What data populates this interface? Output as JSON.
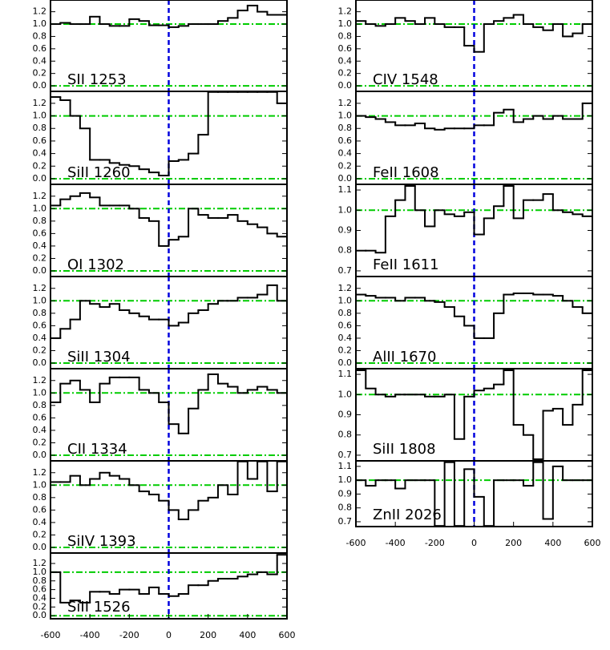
{
  "chart_data": [
    {
      "type": "step",
      "title": "SII 1253",
      "xlim": [
        -600,
        600
      ],
      "ylim": [
        -0.09,
        1.39
      ],
      "yticks": [
        {
          "value": 0,
          "label": "0.0"
        },
        0.2,
        0.4,
        0.6,
        0.8,
        {
          "value": 1,
          "label": "1.0"
        },
        1.2
      ],
      "hlines": [
        0,
        1
      ],
      "vlines": [
        0
      ],
      "color": "#000000",
      "hline_color": "#00cc00",
      "vline_color": "#0000dd",
      "x": [
        -575,
        -525,
        -475,
        -425,
        -375,
        -325,
        -275,
        -225,
        -175,
        -125,
        -75,
        -25,
        25,
        75,
        125,
        175,
        225,
        275,
        325,
        375,
        425,
        475,
        525,
        575
      ],
      "values": [
        1.0,
        1.02,
        1.0,
        1.0,
        1.12,
        1.0,
        0.97,
        0.97,
        1.08,
        1.05,
        0.98,
        0.98,
        0.95,
        0.97,
        1.0,
        1.0,
        1.0,
        1.05,
        1.1,
        1.22,
        1.3,
        1.2,
        1.15,
        1.15
      ]
    },
    {
      "type": "step",
      "title": "SiII 1260",
      "xlim": [
        -600,
        600
      ],
      "ylim": [
        -0.09,
        1.39
      ],
      "yticks": [
        {
          "value": 0,
          "label": "0.0"
        },
        0.2,
        0.4,
        0.6,
        0.8,
        {
          "value": 1,
          "label": "1.0"
        },
        1.2
      ],
      "hlines": [
        0,
        1
      ],
      "vlines": [
        0
      ],
      "color": "#000000",
      "hline_color": "#00cc00",
      "vline_color": "#0000dd",
      "x": [
        -575,
        -525,
        -475,
        -425,
        -375,
        -325,
        -275,
        -225,
        -175,
        -125,
        -75,
        -25,
        25,
        75,
        125,
        175,
        225,
        275,
        325,
        375,
        425,
        475,
        525,
        575
      ],
      "values": [
        1.3,
        1.25,
        1.0,
        0.8,
        0.3,
        0.3,
        0.25,
        0.22,
        0.2,
        0.15,
        0.1,
        0.05,
        0.28,
        0.3,
        0.4,
        0.7,
        1.38,
        1.38,
        1.38,
        1.38,
        1.38,
        1.38,
        1.38,
        1.2
      ]
    },
    {
      "type": "step",
      "title": "OI 1302",
      "xlim": [
        -600,
        600
      ],
      "ylim": [
        -0.09,
        1.39
      ],
      "yticks": [
        {
          "value": 0,
          "label": "0.0"
        },
        0.2,
        0.4,
        0.6,
        0.8,
        {
          "value": 1,
          "label": "1.0"
        },
        1.2
      ],
      "hlines": [
        0,
        1
      ],
      "vlines": [
        0
      ],
      "color": "#000000",
      "hline_color": "#00cc00",
      "vline_color": "#0000dd",
      "x": [
        -575,
        -525,
        -475,
        -425,
        -375,
        -325,
        -275,
        -225,
        -175,
        -125,
        -75,
        -25,
        25,
        75,
        125,
        175,
        225,
        275,
        325,
        375,
        425,
        475,
        525,
        575
      ],
      "values": [
        1.05,
        1.15,
        1.2,
        1.25,
        1.18,
        1.05,
        1.05,
        1.05,
        1.0,
        0.85,
        0.8,
        0.4,
        0.5,
        0.55,
        1.0,
        0.9,
        0.85,
        0.85,
        0.9,
        0.8,
        0.75,
        0.7,
        0.6,
        0.55
      ]
    },
    {
      "type": "step",
      "title": "SiII 1304",
      "xlim": [
        -600,
        600
      ],
      "ylim": [
        -0.09,
        1.39
      ],
      "yticks": [
        {
          "value": 0,
          "label": "0.0"
        },
        0.2,
        0.4,
        0.6,
        0.8,
        {
          "value": 1,
          "label": "1.0"
        },
        1.2
      ],
      "hlines": [
        0,
        1
      ],
      "vlines": [
        0
      ],
      "color": "#000000",
      "hline_color": "#00cc00",
      "vline_color": "#0000dd",
      "x": [
        -575,
        -525,
        -475,
        -425,
        -375,
        -325,
        -275,
        -225,
        -175,
        -125,
        -75,
        -25,
        25,
        75,
        125,
        175,
        225,
        275,
        325,
        375,
        425,
        475,
        525,
        575
      ],
      "values": [
        0.4,
        0.55,
        0.7,
        1.0,
        0.95,
        0.9,
        0.95,
        0.85,
        0.8,
        0.75,
        0.7,
        0.7,
        0.6,
        0.65,
        0.8,
        0.85,
        0.95,
        1.0,
        1.0,
        1.05,
        1.05,
        1.1,
        1.25,
        1.0
      ]
    },
    {
      "type": "step",
      "title": "CII 1334",
      "xlim": [
        -600,
        600
      ],
      "ylim": [
        -0.09,
        1.39
      ],
      "yticks": [
        {
          "value": 0,
          "label": "0.0"
        },
        0.2,
        0.4,
        0.6,
        0.8,
        {
          "value": 1,
          "label": "1.0"
        },
        1.2
      ],
      "hlines": [
        0,
        1
      ],
      "vlines": [
        0
      ],
      "color": "#000000",
      "hline_color": "#00cc00",
      "vline_color": "#0000dd",
      "x": [
        -575,
        -525,
        -475,
        -425,
        -375,
        -325,
        -275,
        -225,
        -175,
        -125,
        -75,
        -25,
        25,
        75,
        125,
        175,
        225,
        275,
        325,
        375,
        425,
        475,
        525,
        575
      ],
      "values": [
        0.85,
        1.15,
        1.2,
        1.05,
        0.85,
        1.15,
        1.25,
        1.25,
        1.25,
        1.05,
        1.0,
        0.85,
        0.5,
        0.35,
        0.75,
        1.05,
        1.3,
        1.15,
        1.1,
        1.0,
        1.05,
        1.1,
        1.05,
        1.0
      ]
    },
    {
      "type": "step",
      "title": "SiIV 1393",
      "xlim": [
        -600,
        600
      ],
      "ylim": [
        -0.09,
        1.39
      ],
      "yticks": [
        {
          "value": 0,
          "label": "0.0"
        },
        0.2,
        0.4,
        0.6,
        0.8,
        {
          "value": 1,
          "label": "1.0"
        },
        1.2
      ],
      "hlines": [
        0,
        1
      ],
      "vlines": [
        0
      ],
      "color": "#000000",
      "hline_color": "#00cc00",
      "vline_color": "#0000dd",
      "x": [
        -575,
        -525,
        -475,
        -425,
        -375,
        -325,
        -275,
        -225,
        -175,
        -125,
        -75,
        -25,
        25,
        75,
        125,
        175,
        225,
        275,
        325,
        375,
        425,
        475,
        525,
        575
      ],
      "values": [
        1.05,
        1.05,
        1.15,
        1.0,
        1.1,
        1.2,
        1.15,
        1.1,
        1.0,
        0.9,
        0.85,
        0.75,
        0.6,
        0.45,
        0.6,
        0.75,
        0.8,
        1.0,
        0.85,
        1.38,
        1.1,
        1.38,
        0.9,
        1.38
      ]
    },
    {
      "type": "step",
      "title": "SiII 1526",
      "xlim": [
        -600,
        600
      ],
      "ylim": [
        -0.07,
        1.44
      ],
      "yticks": [
        {
          "value": 0,
          "label": "0.0"
        },
        0.2,
        0.4,
        0.6,
        0.8,
        {
          "value": 1,
          "label": "1.0"
        },
        1.2
      ],
      "xticks": [
        -600,
        -400,
        -200,
        0,
        200,
        400,
        600
      ],
      "hlines": [
        0,
        1
      ],
      "vlines": [
        0
      ],
      "color": "#000000",
      "hline_color": "#00cc00",
      "vline_color": "#0000dd",
      "x": [
        -575,
        -525,
        -475,
        -425,
        -375,
        -325,
        -275,
        -225,
        -175,
        -125,
        -75,
        -25,
        25,
        75,
        125,
        175,
        225,
        275,
        325,
        375,
        425,
        475,
        525,
        575
      ],
      "values": [
        1.0,
        0.3,
        0.35,
        0.3,
        0.55,
        0.55,
        0.5,
        0.6,
        0.6,
        0.5,
        0.65,
        0.5,
        0.45,
        0.5,
        0.7,
        0.7,
        0.8,
        0.85,
        0.85,
        0.9,
        0.95,
        1.0,
        0.95,
        1.4
      ]
    },
    {
      "type": "step",
      "title": "CIV 1548",
      "xlim": [
        -600,
        600
      ],
      "ylim": [
        -0.09,
        1.39
      ],
      "yticks": [
        {
          "value": 0,
          "label": "0.0"
        },
        0.2,
        0.4,
        0.6,
        0.8,
        {
          "value": 1,
          "label": "1.0"
        },
        1.2
      ],
      "hlines": [
        0,
        1
      ],
      "vlines": [
        0
      ],
      "color": "#000000",
      "hline_color": "#00cc00",
      "vline_color": "#0000dd",
      "x": [
        -575,
        -525,
        -475,
        -425,
        -375,
        -325,
        -275,
        -225,
        -175,
        -125,
        -75,
        -25,
        25,
        75,
        125,
        175,
        225,
        275,
        325,
        375,
        425,
        475,
        525,
        575
      ],
      "values": [
        1.05,
        1.0,
        0.97,
        1.0,
        1.1,
        1.05,
        1.0,
        1.1,
        1.0,
        0.95,
        0.95,
        0.65,
        0.55,
        1.0,
        1.05,
        1.1,
        1.15,
        1.0,
        0.95,
        0.9,
        1.0,
        0.8,
        0.85,
        1.0
      ]
    },
    {
      "type": "step",
      "title": "FeII 1608",
      "xlim": [
        -600,
        600
      ],
      "ylim": [
        -0.09,
        1.39
      ],
      "yticks": [
        {
          "value": 0,
          "label": "0.0"
        },
        0.2,
        0.4,
        0.6,
        0.8,
        {
          "value": 1,
          "label": "1.0"
        },
        1.2
      ],
      "hlines": [
        0,
        1
      ],
      "vlines": [
        0
      ],
      "color": "#000000",
      "hline_color": "#00cc00",
      "vline_color": "#0000dd",
      "x": [
        -575,
        -525,
        -475,
        -425,
        -375,
        -325,
        -275,
        -225,
        -175,
        -125,
        -75,
        -25,
        25,
        75,
        125,
        175,
        225,
        275,
        325,
        375,
        425,
        475,
        525,
        575
      ],
      "values": [
        1.0,
        0.98,
        0.95,
        0.9,
        0.85,
        0.85,
        0.88,
        0.8,
        0.78,
        0.8,
        0.8,
        0.8,
        0.85,
        0.85,
        1.05,
        1.1,
        0.9,
        0.95,
        1.0,
        0.95,
        1.0,
        0.95,
        0.95,
        1.2
      ]
    },
    {
      "type": "step",
      "title": "FeII 1611",
      "xlim": [
        -600,
        600
      ],
      "ylim": [
        0.672,
        1.128
      ],
      "yticks": [
        0.7,
        0.8,
        0.9,
        {
          "value": 1,
          "label": "1.0"
        },
        1.1
      ],
      "hlines": [
        1
      ],
      "vlines": [
        0
      ],
      "color": "#000000",
      "hline_color": "#00cc00",
      "vline_color": "#0000dd",
      "x": [
        -575,
        -525,
        -475,
        -425,
        -375,
        -325,
        -275,
        -225,
        -175,
        -125,
        -75,
        -25,
        25,
        75,
        125,
        175,
        225,
        275,
        325,
        375,
        425,
        475,
        525,
        575
      ],
      "values": [
        0.8,
        0.8,
        0.79,
        0.97,
        1.05,
        1.12,
        1.0,
        0.92,
        1.0,
        0.98,
        0.97,
        0.99,
        0.88,
        0.96,
        1.02,
        1.12,
        0.96,
        1.05,
        1.05,
        1.08,
        1.0,
        0.99,
        0.98,
        0.97
      ]
    },
    {
      "type": "step",
      "title": "AlII 1670",
      "xlim": [
        -600,
        600
      ],
      "ylim": [
        -0.09,
        1.39
      ],
      "yticks": [
        {
          "value": 0,
          "label": "0.0"
        },
        0.2,
        0.4,
        0.6,
        0.8,
        {
          "value": 1,
          "label": "1.0"
        },
        1.2
      ],
      "hlines": [
        0,
        1
      ],
      "vlines": [
        0
      ],
      "color": "#000000",
      "hline_color": "#00cc00",
      "vline_color": "#0000dd",
      "x": [
        -575,
        -525,
        -475,
        -425,
        -375,
        -325,
        -275,
        -225,
        -175,
        -125,
        -75,
        -25,
        25,
        75,
        125,
        175,
        225,
        275,
        325,
        375,
        425,
        475,
        525,
        575
      ],
      "values": [
        1.1,
        1.08,
        1.05,
        1.05,
        1.0,
        1.05,
        1.05,
        1.0,
        0.98,
        0.9,
        0.75,
        0.6,
        0.4,
        0.4,
        0.8,
        1.1,
        1.12,
        1.12,
        1.1,
        1.1,
        1.08,
        1.0,
        0.9,
        0.8
      ]
    },
    {
      "type": "step",
      "title": "SiII 1808",
      "xlim": [
        -600,
        600
      ],
      "ylim": [
        0.672,
        1.128
      ],
      "yticks": [
        0.7,
        0.8,
        0.9,
        {
          "value": 1,
          "label": "1.0"
        },
        1.1
      ],
      "hlines": [
        1
      ],
      "vlines": [
        0
      ],
      "color": "#000000",
      "hline_color": "#00cc00",
      "vline_color": "#0000dd",
      "x": [
        -575,
        -525,
        -475,
        -425,
        -375,
        -325,
        -275,
        -225,
        -175,
        -125,
        -75,
        -25,
        25,
        75,
        125,
        175,
        225,
        275,
        325,
        375,
        425,
        475,
        525,
        575
      ],
      "values": [
        1.12,
        1.03,
        1.0,
        0.99,
        1.0,
        1.0,
        1.0,
        0.99,
        0.99,
        1.0,
        0.78,
        0.99,
        1.02,
        1.03,
        1.05,
        1.12,
        0.85,
        0.8,
        0.68,
        0.92,
        0.93,
        0.85,
        0.95,
        1.12
      ]
    },
    {
      "type": "step",
      "title": "ZnII 2026",
      "xlim": [
        -600,
        600
      ],
      "ylim": [
        0.665,
        1.14
      ],
      "yticks": [
        0.7,
        0.8,
        0.9,
        {
          "value": 1,
          "label": "1.0"
        },
        1.1
      ],
      "xticks": [
        -600,
        -400,
        -200,
        0,
        200,
        400,
        600
      ],
      "hlines": [
        1
      ],
      "vlines": [
        0
      ],
      "color": "#000000",
      "hline_color": "#00cc00",
      "vline_color": "#0000dd",
      "x": [
        -575,
        -525,
        -475,
        -425,
        -375,
        -325,
        -275,
        -225,
        -175,
        -125,
        -75,
        -25,
        25,
        75,
        125,
        175,
        225,
        275,
        325,
        375,
        425,
        475,
        525,
        575
      ],
      "values": [
        1.0,
        0.96,
        1.0,
        1.0,
        0.94,
        1.0,
        1.0,
        1.0,
        0.67,
        1.13,
        0.67,
        1.08,
        0.88,
        0.67,
        1.0,
        1.0,
        1.0,
        0.96,
        1.13,
        0.72,
        1.1,
        1.0,
        1.0,
        1.0
      ]
    }
  ]
}
